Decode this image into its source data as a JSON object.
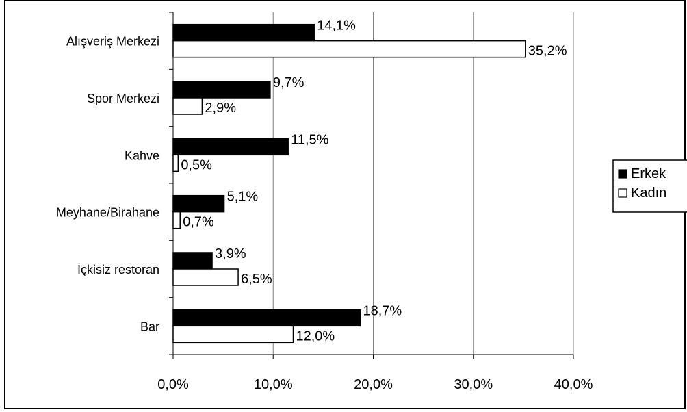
{
  "chart_data": {
    "type": "bar",
    "orientation": "horizontal",
    "categories": [
      "Alışveriş Merkezi",
      "Spor Merkezi",
      "Kahve",
      "Meyhane/Birahane",
      "İçkisiz restoran",
      "Bar"
    ],
    "series": [
      {
        "name": "Erkek",
        "values": [
          14.1,
          9.7,
          11.5,
          5.1,
          3.9,
          18.7
        ],
        "fill": "#000000"
      },
      {
        "name": "Kadın",
        "values": [
          35.2,
          2.9,
          0.5,
          0.7,
          6.5,
          12.0
        ],
        "fill": "#ffffff"
      }
    ],
    "data_labels": {
      "Erkek": [
        "14,1%",
        "9,7%",
        "11,5%",
        "5,1%",
        "3,9%",
        "18,7%"
      ],
      "Kadın": [
        "35,2%",
        "2,9%",
        "0,5%",
        "0,7%",
        "6,5%",
        "12,0%"
      ]
    },
    "xlim": [
      0,
      40
    ],
    "xticks": [
      0,
      10,
      20,
      30,
      40
    ],
    "xtick_labels": [
      "0,0%",
      "10,0%",
      "20,0%",
      "30,0%",
      "40,0%"
    ],
    "grid": "vertical",
    "legend": {
      "placement": "right",
      "entries": [
        {
          "label": "Erkek",
          "fill": "#000000"
        },
        {
          "label": "Kadın",
          "fill": "#ffffff"
        }
      ]
    },
    "title": "",
    "xlabel": "",
    "ylabel": ""
  }
}
